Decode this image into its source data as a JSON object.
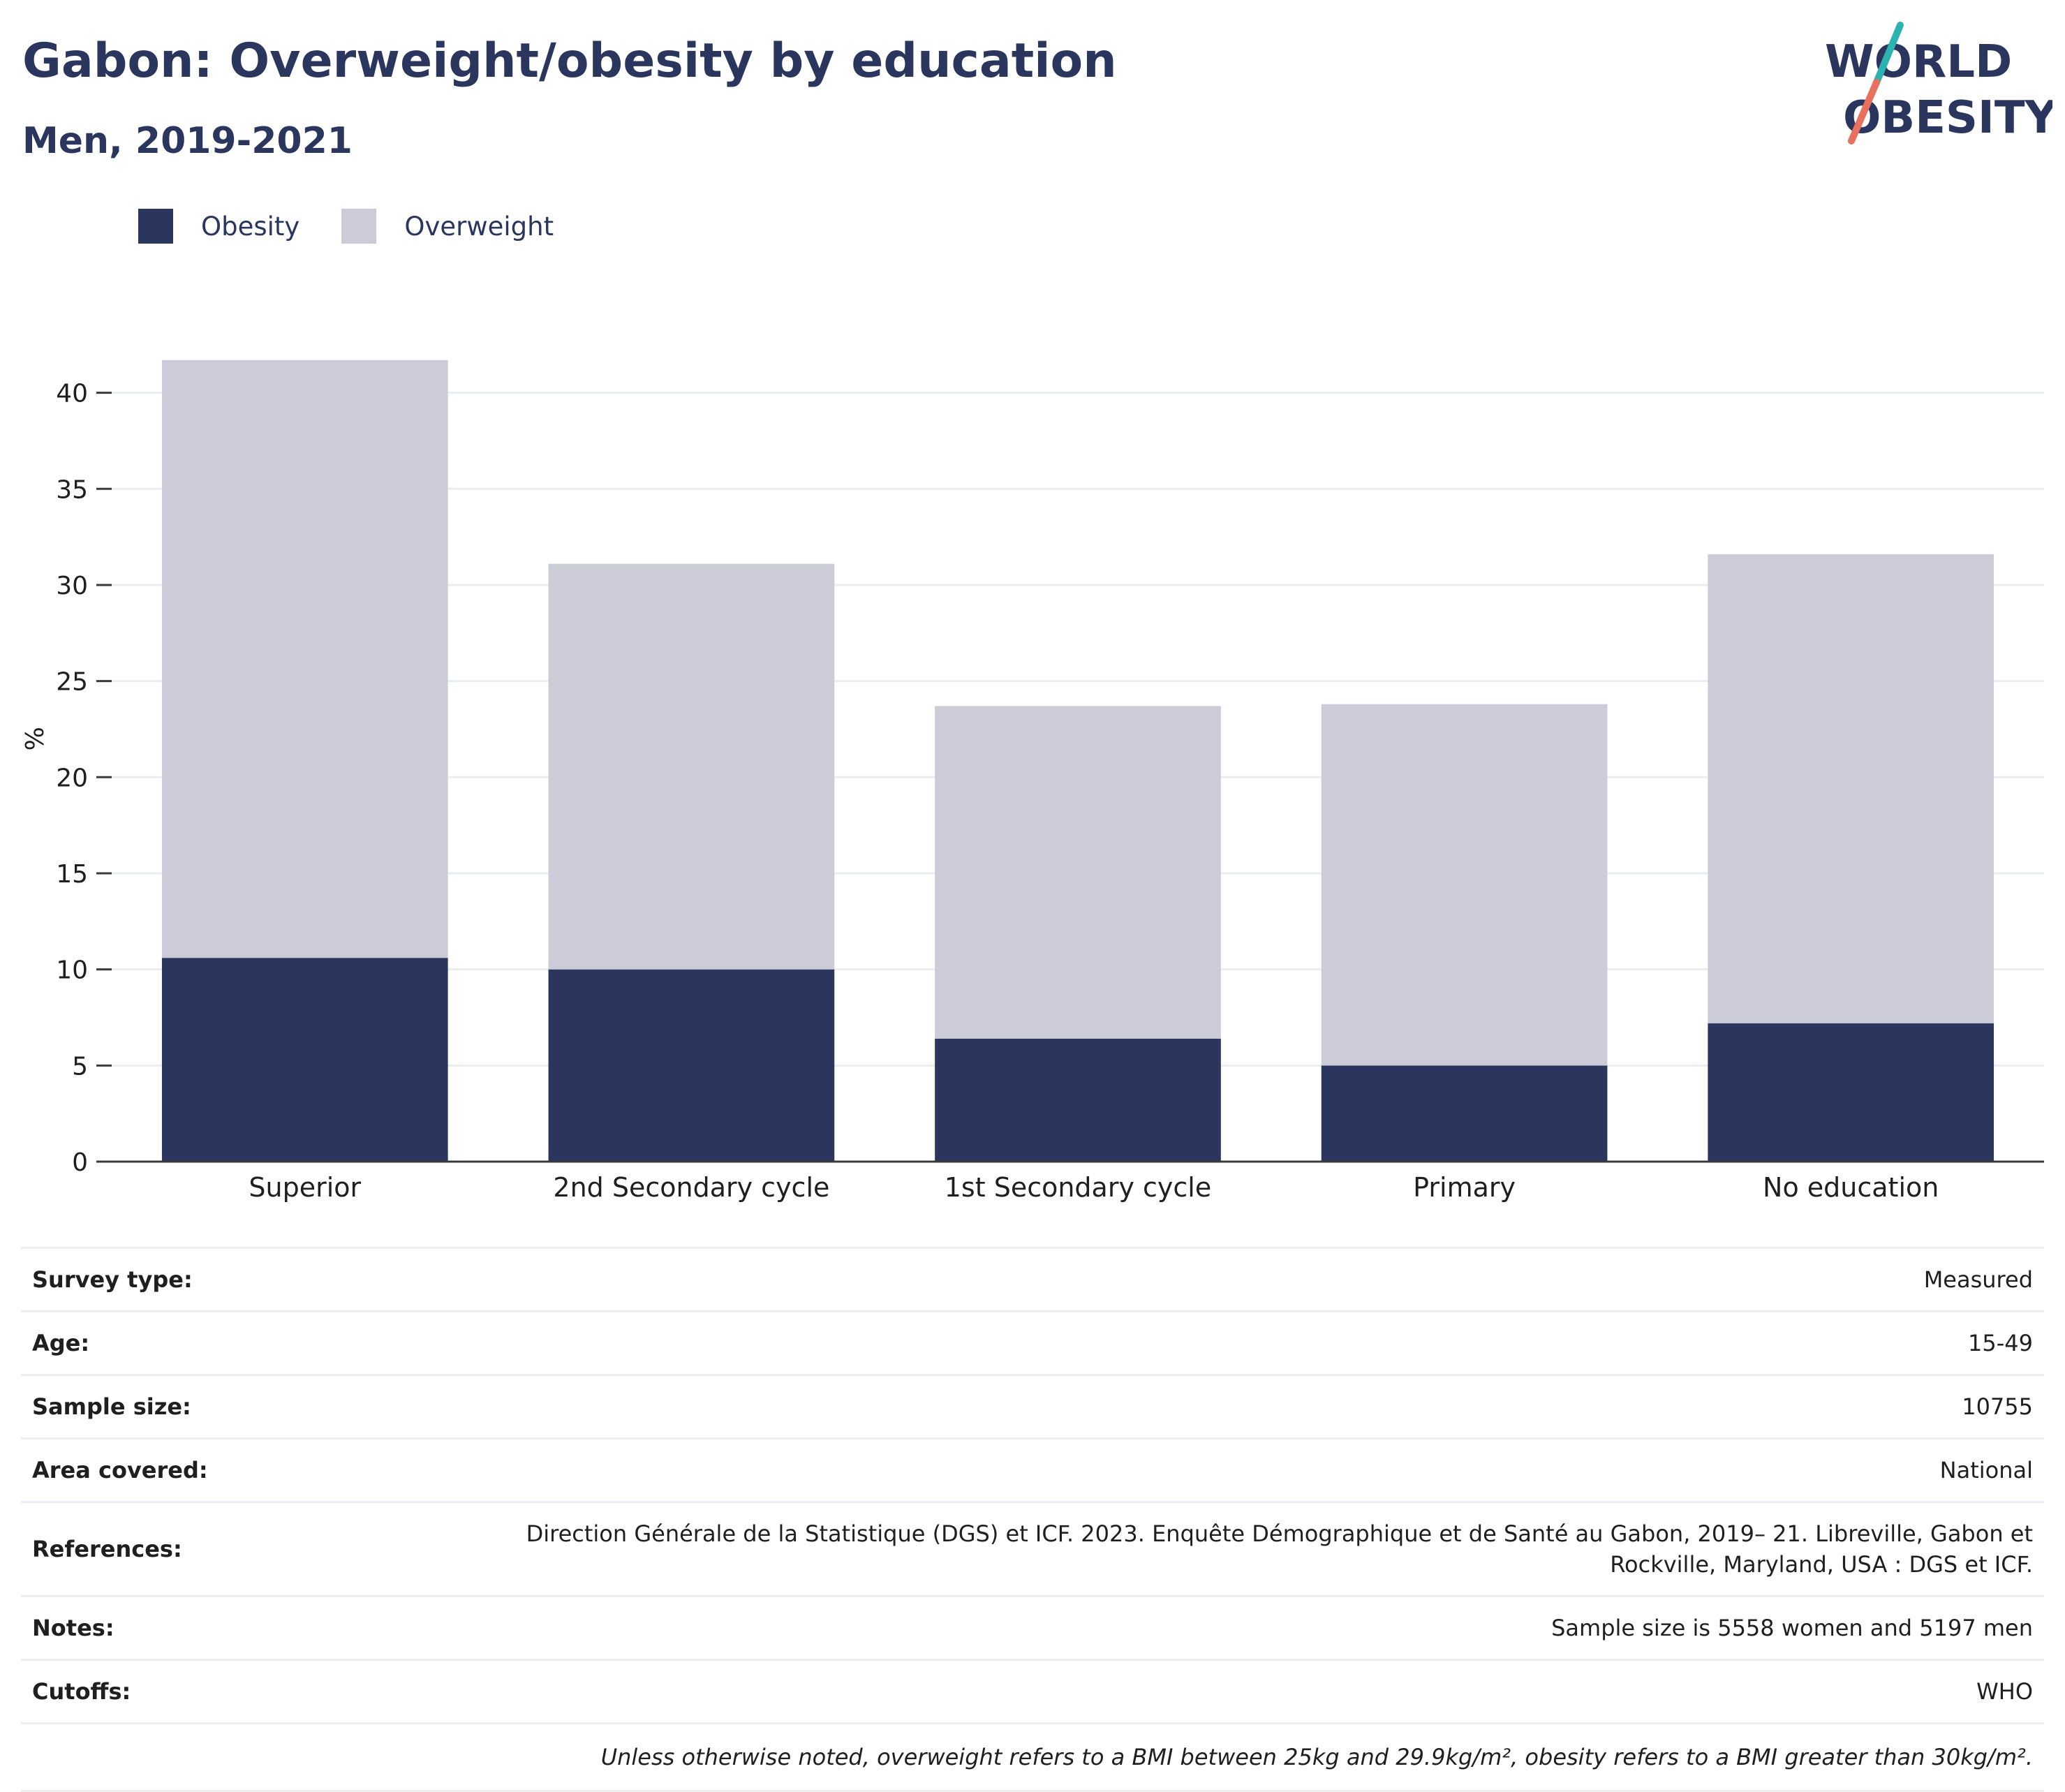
{
  "header": {
    "title": "Gabon: Overweight/obesity by education",
    "subtitle": "Men, 2019-2021"
  },
  "logo": {
    "line1": "WORLD",
    "line2": "OBESITY",
    "colors": {
      "text": "#2b365f",
      "slash_top": "#2bb3b1",
      "slash_bottom": "#e8705f"
    }
  },
  "legend": [
    {
      "label": "Obesity",
      "color": "#2b365f"
    },
    {
      "label": "Overweight",
      "color": "#cbccd8"
    }
  ],
  "chart_data": {
    "type": "bar",
    "stacked": true,
    "categories": [
      "Superior",
      "2nd Secondary cycle",
      "1st Secondary cycle",
      "Primary",
      "No education"
    ],
    "series": [
      {
        "name": "Obesity",
        "color": "#2b365f",
        "values": [
          10.6,
          10.0,
          6.4,
          5.0,
          7.2
        ]
      },
      {
        "name": "Overweight",
        "color": "#cbccd8",
        "values": [
          31.1,
          21.1,
          17.3,
          18.8,
          24.4
        ]
      }
    ],
    "ylabel": "%",
    "yticks": [
      0,
      5,
      10,
      15,
      20,
      25,
      30,
      35,
      40
    ],
    "ylim": [
      0,
      43
    ],
    "grid": true,
    "legend_position": "top-left"
  },
  "meta": [
    {
      "key": "Survey type:",
      "value": "Measured"
    },
    {
      "key": "Age:",
      "value": "15-49"
    },
    {
      "key": "Sample size:",
      "value": "10755"
    },
    {
      "key": "Area covered:",
      "value": "National"
    },
    {
      "key": "References:",
      "value": "Direction Générale de la Statistique (DGS) et ICF. 2023. Enquête Démographique et de Santé au Gabon, 2019– 21. Libreville, Gabon et Rockville, Maryland, USA : DGS et ICF."
    },
    {
      "key": "Notes:",
      "value": "Sample size is 5558 women and 5197 men"
    },
    {
      "key": "Cutoffs:",
      "value": "WHO"
    }
  ],
  "footnote": "Unless otherwise noted, overweight refers to a BMI between 25kg and 29.9kg/m², obesity refers to a BMI greater than 30kg/m²."
}
